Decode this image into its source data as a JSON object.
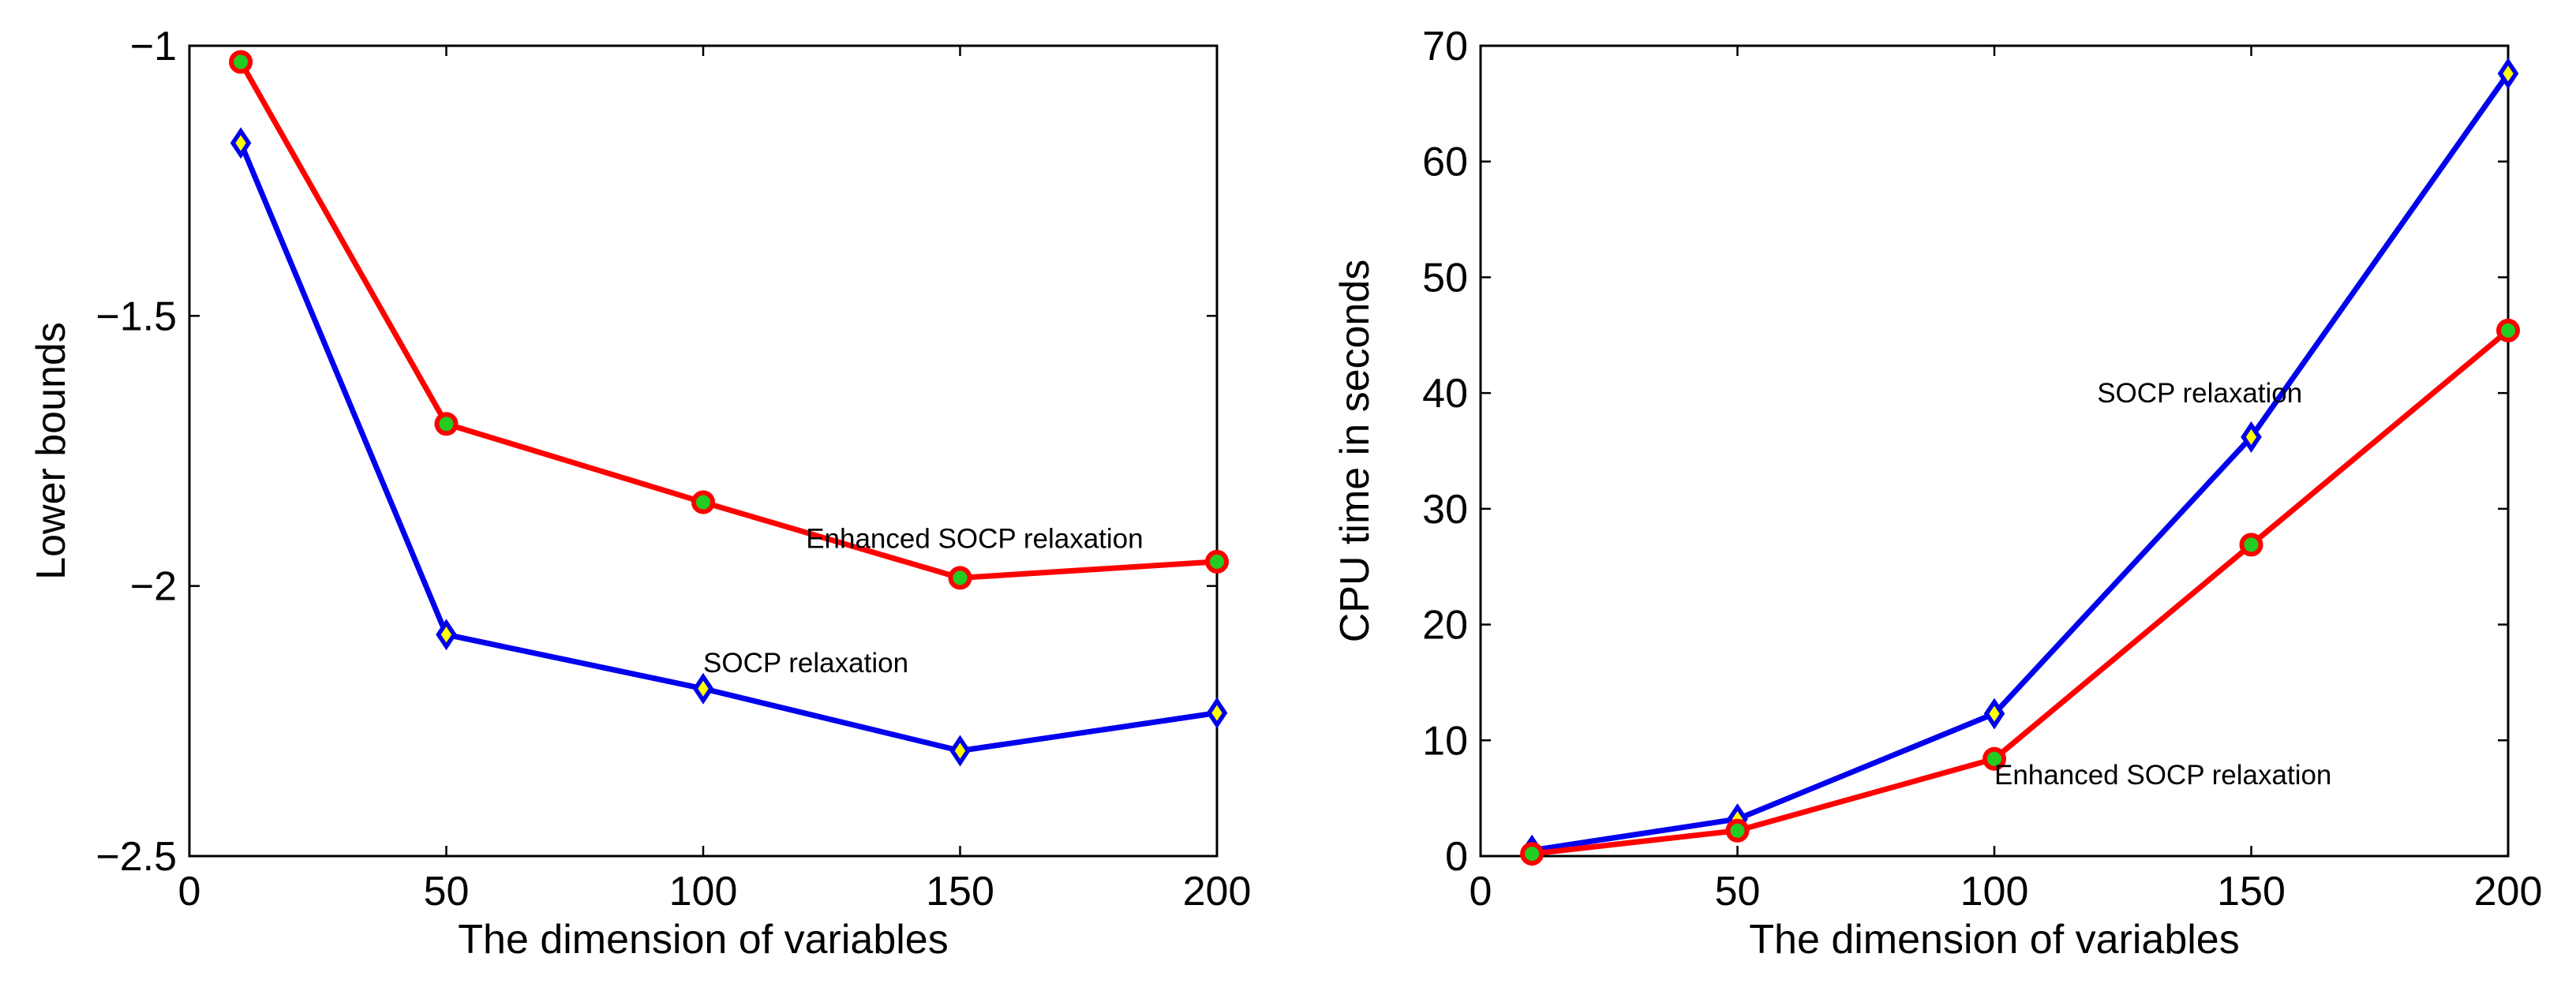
{
  "chart_data": [
    {
      "type": "line",
      "title": "",
      "xlabel": "The dimension of variables",
      "ylabel": "Lower bounds",
      "xlim": [
        0,
        200
      ],
      "ylim": [
        -2.5,
        -1
      ],
      "xticks": [
        0,
        50,
        100,
        150,
        200
      ],
      "xtick_labels": [
        "0",
        "50",
        "100",
        "150",
        "200"
      ],
      "yticks": [
        -1,
        -1.5,
        -2,
        -2.5
      ],
      "ytick_labels": [
        "−1",
        "−1.5",
        "−2",
        "−2.5"
      ],
      "grid": false,
      "x": [
        10,
        50,
        100,
        150,
        200
      ],
      "series": [
        {
          "name": "Enhanced SOCP relaxation",
          "color": "#ff0000",
          "marker": "circle",
          "marker_fill": "#22cc22",
          "values": [
            -1.03,
            -1.7,
            -1.845,
            -1.985,
            -1.955
          ]
        },
        {
          "name": "SOCP relaxation",
          "color": "#0000ee",
          "marker": "diamond",
          "marker_fill": "#ffff00",
          "values": [
            -1.18,
            -2.09,
            -2.19,
            -2.305,
            -2.235
          ]
        }
      ],
      "annotations": [
        {
          "text": "Enhanced SOCP relaxation",
          "x": 120,
          "y": -1.93
        },
        {
          "text": "SOCP relaxation",
          "x": 100,
          "y": -2.16
        }
      ]
    },
    {
      "type": "line",
      "title": "",
      "xlabel": "The dimension of variables",
      "ylabel": "CPU time in seconds",
      "xlim": [
        0,
        200
      ],
      "ylim": [
        0,
        70
      ],
      "xticks": [
        0,
        50,
        100,
        150,
        200
      ],
      "xtick_labels": [
        "0",
        "50",
        "100",
        "150",
        "200"
      ],
      "yticks": [
        0,
        10,
        20,
        30,
        40,
        50,
        60,
        70
      ],
      "ytick_labels": [
        "0",
        "10",
        "20",
        "30",
        "40",
        "50",
        "60",
        "70"
      ],
      "grid": false,
      "x": [
        10,
        50,
        100,
        150,
        200
      ],
      "series": [
        {
          "name": "SOCP relaxation",
          "color": "#0000ee",
          "marker": "diamond",
          "marker_fill": "#ffff00",
          "values": [
            0.5,
            3.2,
            12.3,
            36.2,
            67.6
          ]
        },
        {
          "name": "Enhanced SOCP relaxation",
          "color": "#ff0000",
          "marker": "circle",
          "marker_fill": "#22cc22",
          "values": [
            0.2,
            2.2,
            8.4,
            26.9,
            45.4
          ]
        }
      ],
      "annotations": [
        {
          "text": "SOCP relaxation",
          "x": 120,
          "y": 39.2
        },
        {
          "text": "Enhanced SOCP relaxation",
          "x": 100,
          "y": 6.2
        }
      ]
    }
  ]
}
